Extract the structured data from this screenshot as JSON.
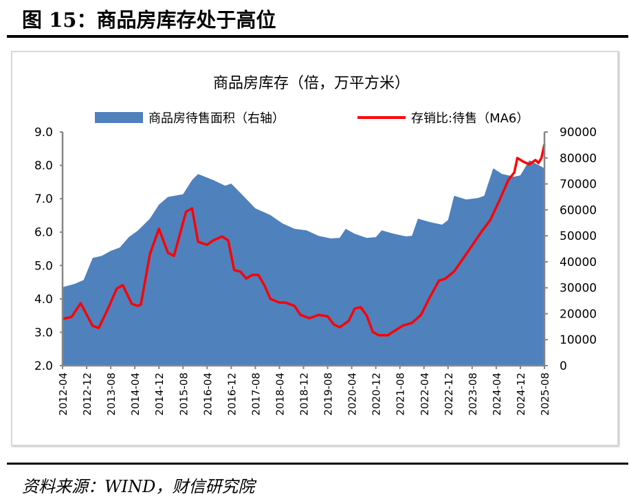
{
  "figure_title": "图 15：商品房库存处于高位",
  "source": "资料来源：WIND，财信研究院",
  "chart_data": {
    "type": "area+line",
    "title": "商品房库存（倍，万平方米）",
    "legend_position": "top",
    "grid": false,
    "y_left": {
      "range": [
        2.0,
        9.0
      ],
      "ticks": [
        "2.0",
        "3.0",
        "4.0",
        "5.0",
        "6.0",
        "7.0",
        "8.0",
        "9.0"
      ]
    },
    "y_right": {
      "range": [
        0,
        90000
      ],
      "ticks": [
        "0",
        "10000",
        "20000",
        "30000",
        "40000",
        "50000",
        "60000",
        "70000",
        "80000",
        "90000"
      ]
    },
    "x_ticks": [
      "2012-04",
      "2012-12",
      "2013-08",
      "2014-04",
      "2014-12",
      "2015-08",
      "2016-04",
      "2016-12",
      "2017-08",
      "2018-04",
      "2018-12",
      "2019-08",
      "2020-04",
      "2020-12",
      "2021-08",
      "2022-04",
      "2022-12",
      "2023-08",
      "2024-04",
      "2024-12",
      "2025-08"
    ],
    "series": [
      {
        "name": "商品房待售面积（右轴）",
        "type": "area",
        "axis": "right",
        "color": "#4f81bd",
        "x": [
          "2012-04",
          "2012-08",
          "2012-11",
          "2013-02",
          "2013-05",
          "2013-08",
          "2013-11",
          "2014-02",
          "2014-05",
          "2014-09",
          "2014-12",
          "2015-03",
          "2015-08",
          "2015-11",
          "2016-01",
          "2016-06",
          "2016-10",
          "2016-12",
          "2017-04",
          "2017-08",
          "2018-01",
          "2018-05",
          "2018-09",
          "2019-01",
          "2019-05",
          "2019-09",
          "2019-12",
          "2020-02",
          "2020-05",
          "2020-09",
          "2020-12",
          "2021-02",
          "2021-06",
          "2021-10",
          "2021-12",
          "2022-02",
          "2022-06",
          "2022-10",
          "2022-12",
          "2023-02",
          "2023-06",
          "2023-10",
          "2023-12",
          "2024-03",
          "2024-06",
          "2024-10",
          "2024-12",
          "2025-03",
          "2025-06",
          "2025-08"
        ],
        "values": [
          30200,
          31500,
          33000,
          41500,
          42300,
          44200,
          45500,
          49500,
          52000,
          56600,
          62000,
          65000,
          66000,
          71500,
          73800,
          71500,
          69300,
          70100,
          65400,
          60600,
          58000,
          54800,
          52700,
          52100,
          50000,
          49000,
          49200,
          52700,
          50800,
          49200,
          49500,
          52100,
          50800,
          49800,
          50000,
          56600,
          55300,
          54300,
          56100,
          65400,
          64000,
          64600,
          65400,
          76000,
          73800,
          72800,
          73300,
          79100,
          77300,
          76000
        ]
      },
      {
        "name": "存销比:待售（MA6）",
        "type": "line",
        "axis": "left",
        "color": "#ff0000",
        "x": [
          "2012-04",
          "2012-07",
          "2012-10",
          "2013-02",
          "2013-04",
          "2013-07",
          "2013-10",
          "2013-12",
          "2014-03",
          "2014-05",
          "2014-06",
          "2014-09",
          "2014-12",
          "2015-03",
          "2015-05",
          "2015-07",
          "2015-09",
          "2015-11",
          "2016-01",
          "2016-04",
          "2016-06",
          "2016-09",
          "2016-11",
          "2017-01",
          "2017-03",
          "2017-05",
          "2017-07",
          "2017-09",
          "2017-11",
          "2018-01",
          "2018-04",
          "2018-06",
          "2018-09",
          "2018-11",
          "2019-02",
          "2019-05",
          "2019-08",
          "2019-10",
          "2019-12",
          "2020-03",
          "2020-05",
          "2020-07",
          "2020-09",
          "2020-11",
          "2021-01",
          "2021-04",
          "2021-06",
          "2021-09",
          "2021-12",
          "2022-03",
          "2022-06",
          "2022-09",
          "2022-11",
          "2023-02",
          "2023-05",
          "2023-08",
          "2023-11",
          "2024-02",
          "2024-05",
          "2024-08",
          "2024-10",
          "2024-11",
          "2025-01",
          "2025-03",
          "2025-05",
          "2025-06",
          "2025-07",
          "2025-08"
        ],
        "values": [
          3.4,
          3.46,
          3.87,
          3.19,
          3.13,
          3.69,
          4.31,
          4.41,
          3.85,
          3.79,
          3.83,
          5.34,
          6.1,
          5.38,
          5.29,
          5.95,
          6.61,
          6.71,
          5.71,
          5.62,
          5.75,
          5.87,
          5.75,
          4.86,
          4.82,
          4.61,
          4.72,
          4.72,
          4.41,
          4.0,
          3.89,
          3.89,
          3.79,
          3.52,
          3.42,
          3.52,
          3.48,
          3.24,
          3.15,
          3.34,
          3.71,
          3.75,
          3.5,
          3.01,
          2.91,
          2.91,
          3.03,
          3.2,
          3.28,
          3.52,
          4.06,
          4.55,
          4.6,
          4.82,
          5.21,
          5.6,
          6.0,
          6.36,
          6.94,
          7.56,
          7.79,
          8.22,
          8.11,
          8.03,
          8.16,
          8.07,
          8.22,
          8.63
        ]
      }
    ]
  }
}
